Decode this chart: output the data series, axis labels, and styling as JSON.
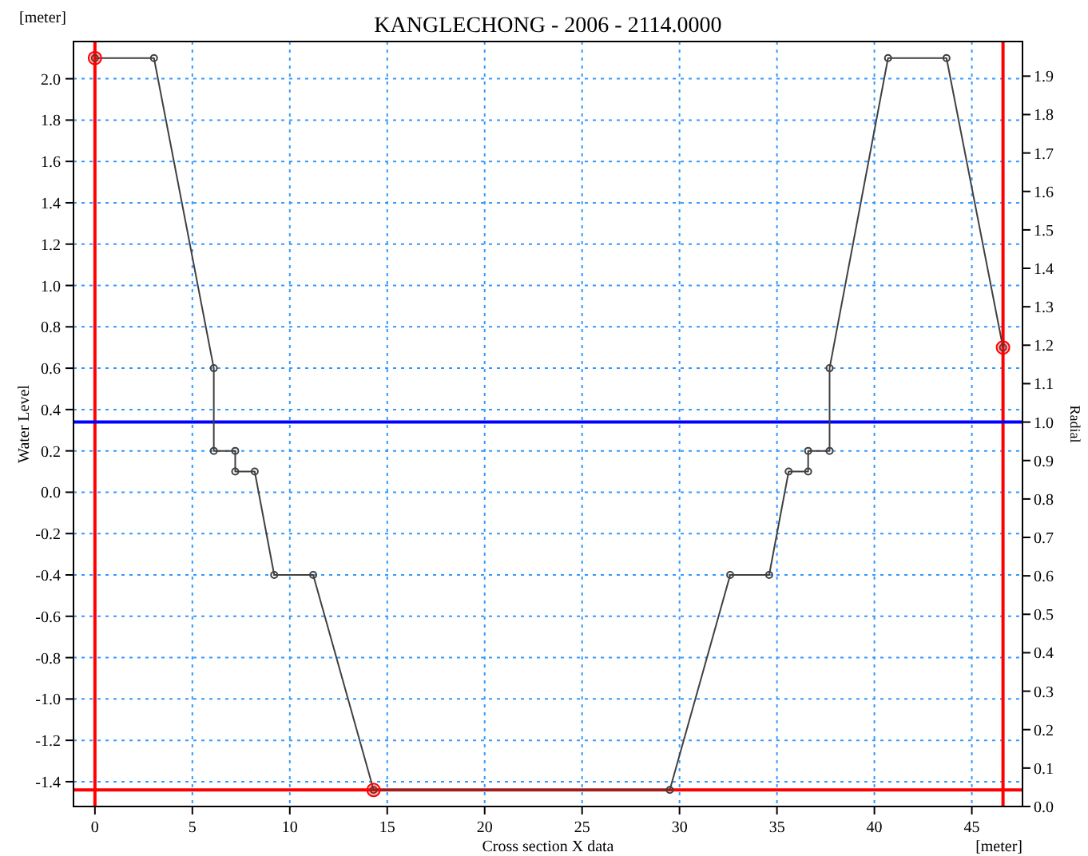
{
  "chart_data": {
    "type": "line",
    "title": "KANGLECHONG - 2006 - 2114.0000",
    "xlabel": "Cross section X data",
    "ylabel": "Water Level",
    "y2label": "Radial",
    "annotations": [
      "[meter]",
      "[meter]"
    ],
    "series": [
      {
        "color": "#404040",
        "marker": "circle",
        "x": [
          0,
          3.03,
          6.1,
          6.1,
          7.2,
          7.2,
          8.2,
          9.2,
          11.2,
          14.3,
          29.5,
          32.6,
          34.6,
          35.6,
          36.6,
          36.6,
          37.7,
          37.7,
          40.7,
          43.7,
          46.6
        ],
        "values": [
          2.1,
          2.1,
          0.6,
          0.2,
          0.2,
          0.1,
          0.1,
          -0.4,
          -0.4,
          -1.44,
          -1.44,
          -0.4,
          -0.4,
          0.1,
          0.1,
          0.2,
          0.2,
          0.6,
          2.1,
          2.1,
          0.7
        ]
      },
      {
        "type": "scatter",
        "color": "#ff0000",
        "marker": "circle",
        "x": [
          0,
          14.3,
          46.6
        ],
        "values": [
          2.1,
          -1.44,
          0.7
        ]
      }
    ],
    "xlim": [
      -1.1,
      47.6
    ],
    "xticks": [
      0,
      5,
      10,
      15,
      20,
      25,
      30,
      35,
      40,
      45
    ],
    "ylim": [
      -1.52,
      2.18
    ],
    "yticks": [
      -1.4,
      -1.2,
      {
        "value": -1,
        "label": "-1.0"
      },
      -0.8,
      -0.6,
      -0.4,
      -0.2,
      {
        "value": 0,
        "label": "0.0"
      },
      0.2,
      0.4,
      0.6,
      0.8,
      {
        "value": 1,
        "label": "1.0"
      },
      1.2,
      1.4,
      1.6,
      1.8,
      {
        "value": 2,
        "label": "2.0"
      }
    ],
    "y2lim": [
      0,
      1.99
    ],
    "y2ticks": [
      {
        "value": 0,
        "label": "0.0"
      },
      0.1,
      0.2,
      0.3,
      0.4,
      0.5,
      0.6,
      0.7,
      0.8,
      0.9,
      {
        "value": 1,
        "label": "1.0"
      },
      1.1,
      1.2,
      1.3,
      1.4,
      1.5,
      1.6,
      1.7,
      1.8,
      1.9
    ],
    "ref_lines": [
      {
        "axis": "x",
        "value": 0,
        "color": "#ff0000"
      },
      {
        "axis": "x",
        "value": 46.6,
        "color": "#ff0000"
      },
      {
        "axis": "y",
        "value": -1.44,
        "color": "#ff0000"
      },
      {
        "axis": "y",
        "value": 0.34,
        "color": "#0000ff"
      }
    ],
    "grid": true
  }
}
